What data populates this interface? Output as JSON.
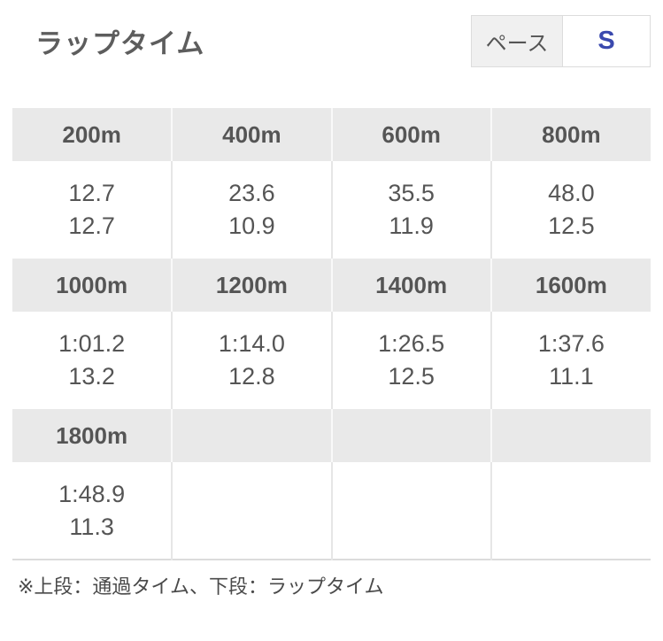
{
  "header": {
    "title": "ラップタイム",
    "pace": {
      "label": "ペース",
      "value": "S"
    }
  },
  "table": {
    "sections": [
      {
        "headers": [
          "200m",
          "400m",
          "600m",
          "800m"
        ],
        "cells": [
          {
            "passing": "12.7",
            "lap": "12.7"
          },
          {
            "passing": "23.6",
            "lap": "10.9"
          },
          {
            "passing": "35.5",
            "lap": "11.9"
          },
          {
            "passing": "48.0",
            "lap": "12.5"
          }
        ]
      },
      {
        "headers": [
          "1000m",
          "1200m",
          "1400m",
          "1600m"
        ],
        "cells": [
          {
            "passing": "1:01.2",
            "lap": "13.2"
          },
          {
            "passing": "1:14.0",
            "lap": "12.8"
          },
          {
            "passing": "1:26.5",
            "lap": "12.5"
          },
          {
            "passing": "1:37.6",
            "lap": "11.1"
          }
        ]
      },
      {
        "headers": [
          "1800m",
          "",
          "",
          ""
        ],
        "cells": [
          {
            "passing": "1:48.9",
            "lap": "11.3"
          },
          {
            "passing": "",
            "lap": ""
          },
          {
            "passing": "",
            "lap": ""
          },
          {
            "passing": "",
            "lap": ""
          }
        ]
      }
    ]
  },
  "footer": {
    "note": "※上段：通過タイム、下段：ラップタイム"
  },
  "colors": {
    "pace_value_blue": "#3a49ae",
    "header_band_gray": "#e9e9e9",
    "text_gray": "#555555"
  }
}
